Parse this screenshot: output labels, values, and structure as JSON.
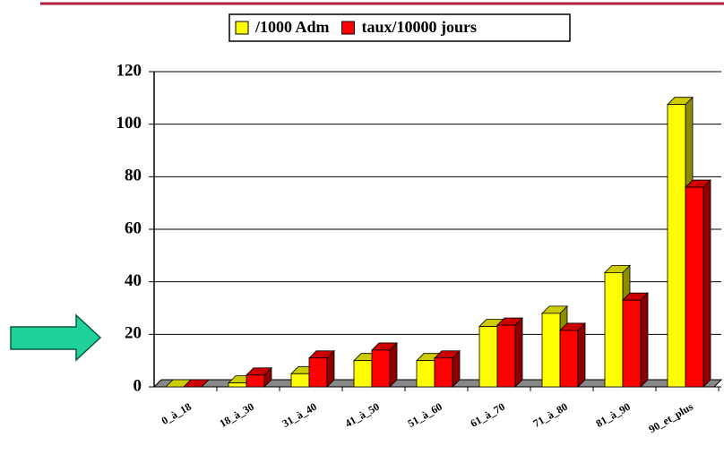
{
  "chart_data": {
    "type": "bar3d",
    "categories": [
      "0_à_18",
      "18_à_30",
      "31_à_40",
      "41_à_50",
      "51_à_60",
      "61_à_70",
      "71_à_80",
      "81_à_90",
      "90_et_plus"
    ],
    "series": [
      {
        "name": "/1000 Adm",
        "color": "#ffff00",
        "values": [
          0,
          1.5,
          5,
          10,
          10,
          23,
          28,
          43.5,
          107.5
        ]
      },
      {
        "name": "taux/10000 jours",
        "color": "#ff0000",
        "values": [
          0,
          4.5,
          11,
          14,
          11,
          23.5,
          21.5,
          33,
          76
        ]
      }
    ],
    "ylim": [
      0,
      120
    ],
    "yticks": [
      0,
      20,
      40,
      60,
      80,
      100,
      120
    ],
    "grid": true
  }
}
